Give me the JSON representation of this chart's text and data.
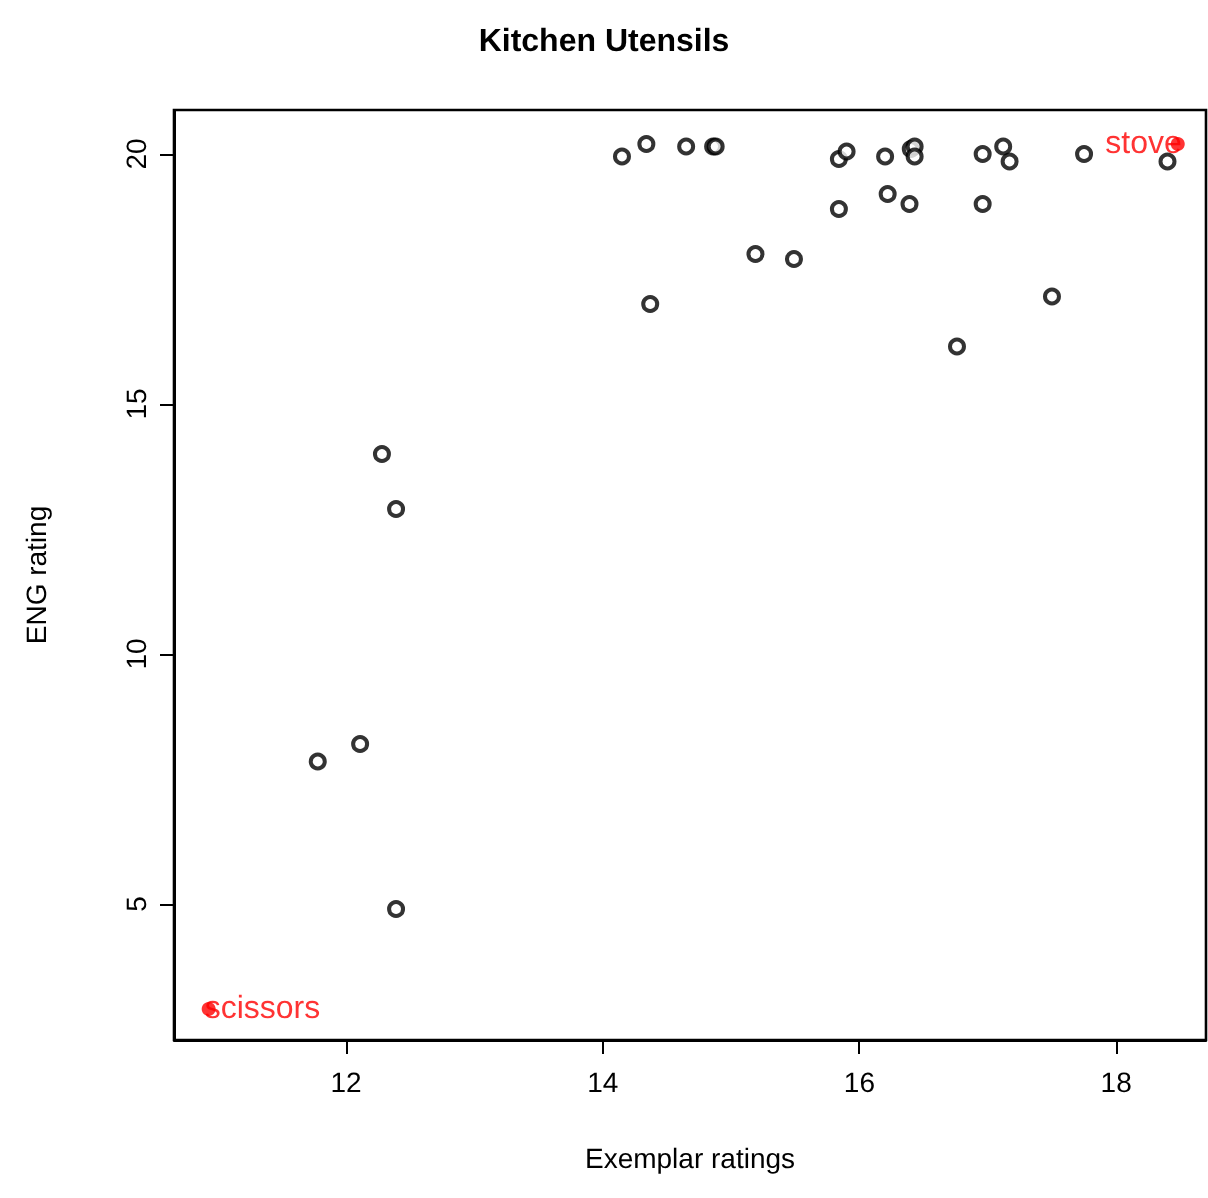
{
  "chart_data": {
    "type": "scatter",
    "title": "Kitchen Utensils",
    "xlabel": "Exemplar ratings",
    "ylabel": "ENG rating",
    "xlim": [
      10.66,
      18.7
    ],
    "xticks": [
      12,
      14,
      16,
      18
    ],
    "ylim": [
      2.28,
      20.88
    ],
    "yticks": [
      5,
      10,
      15,
      20
    ],
    "grid": false,
    "marker": "circle",
    "series": [
      {
        "color": "#000000",
        "x": [
          14.15,
          14.34,
          14.65,
          14.86,
          14.88,
          14.37,
          15.19,
          15.49,
          15.84,
          15.9,
          15.84,
          16.2,
          16.22,
          16.4,
          16.43,
          16.43,
          16.39,
          16.76,
          16.96,
          16.96,
          17.12,
          17.17,
          17.5,
          17.75,
          18.4,
          12.28,
          12.39,
          12.11,
          11.78,
          12.39
        ],
        "values": [
          19.95,
          20.2,
          20.15,
          20.15,
          20.15,
          17.0,
          18.0,
          17.9,
          19.9,
          20.05,
          18.9,
          19.95,
          19.2,
          20.1,
          20.15,
          19.95,
          19.0,
          16.15,
          20.0,
          19.0,
          20.15,
          19.85,
          17.15,
          20.0,
          19.85,
          14.0,
          12.9,
          8.2,
          7.85,
          4.9
        ]
      },
      {
        "color": "#ff0000",
        "x": [
          10.93,
          18.48
        ],
        "values": [
          2.9,
          20.2
        ]
      }
    ],
    "annotations": [
      {
        "text": "scissors",
        "x": 10.93,
        "y": 2.9
      },
      {
        "text": "stove",
        "x": 18.48,
        "y": 20.2
      }
    ]
  }
}
